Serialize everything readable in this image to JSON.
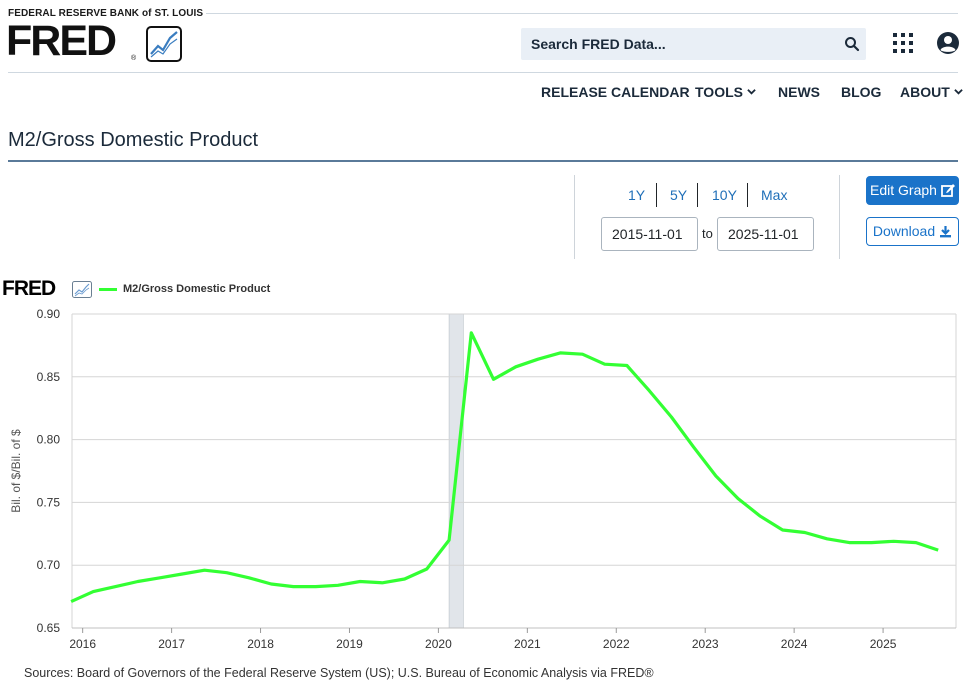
{
  "header": {
    "bank_name": "FEDERAL RESERVE BANK of ST. LOUIS",
    "logo_text": "FRED",
    "logo_reg": "®",
    "search_placeholder": "Search FRED Data...",
    "icons": [
      "search-icon",
      "apps-grid-icon",
      "user-account-icon"
    ]
  },
  "nav": {
    "release_calendar": "RELEASE CALENDAR",
    "tools": "TOOLS",
    "news": "NEWS",
    "blog": "BLOG",
    "about": "ABOUT"
  },
  "page": {
    "title": "M2/Gross Domestic Product"
  },
  "controls": {
    "ranges": [
      "1Y",
      "5Y",
      "10Y",
      "Max"
    ],
    "start_date": "2015-11-01",
    "to_label": "to",
    "end_date": "2025-11-01",
    "edit_graph": "Edit Graph",
    "download": "Download"
  },
  "legend": {
    "logo_text": "FRED",
    "series_name": "M2/Gross Domestic Product"
  },
  "chart_data": {
    "type": "line",
    "ylabel": "Bil. of $/Bil. of $",
    "ylim": [
      0.65,
      0.9
    ],
    "xlim": [
      2015.88,
      2025.82
    ],
    "yticks": [
      0.65,
      0.7,
      0.75,
      0.8,
      0.85,
      0.9
    ],
    "ytick_labels": [
      "0.65",
      "0.70",
      "0.75",
      "0.80",
      "0.85",
      "0.90"
    ],
    "xticks": [
      2016,
      2017,
      2018,
      2019,
      2020,
      2021,
      2022,
      2023,
      2024,
      2025
    ],
    "xtick_labels": [
      "2016",
      "2017",
      "2018",
      "2019",
      "2020",
      "2021",
      "2022",
      "2023",
      "2024",
      "2025"
    ],
    "grid": true,
    "recession_shading": [
      2020.12,
      2020.28
    ],
    "series": [
      {
        "name": "M2/Gross Domestic Product",
        "color": "#33ff33",
        "x": [
          2015.87,
          2016.12,
          2016.37,
          2016.62,
          2016.87,
          2017.12,
          2017.37,
          2017.62,
          2017.87,
          2018.12,
          2018.37,
          2018.62,
          2018.87,
          2019.12,
          2019.37,
          2019.62,
          2019.87,
          2020.12,
          2020.37,
          2020.62,
          2020.87,
          2021.12,
          2021.37,
          2021.62,
          2021.87,
          2022.12,
          2022.37,
          2022.62,
          2022.87,
          2023.12,
          2023.37,
          2023.62,
          2023.87,
          2024.12,
          2024.37,
          2024.62,
          2024.87,
          2025.12,
          2025.37,
          2025.62
        ],
        "y": [
          0.671,
          0.679,
          0.683,
          0.687,
          0.69,
          0.693,
          0.696,
          0.694,
          0.69,
          0.685,
          0.683,
          0.683,
          0.684,
          0.687,
          0.686,
          0.689,
          0.697,
          0.72,
          0.885,
          0.848,
          0.858,
          0.864,
          0.869,
          0.868,
          0.86,
          0.859,
          0.839,
          0.818,
          0.794,
          0.771,
          0.753,
          0.739,
          0.728,
          0.726,
          0.721,
          0.718,
          0.718,
          0.719,
          0.718,
          0.712
        ]
      }
    ]
  },
  "footer": {
    "sources": "Sources: Board of Governors of the Federal Reserve System (US); U.S. Bureau of Economic Analysis via FRED®"
  }
}
